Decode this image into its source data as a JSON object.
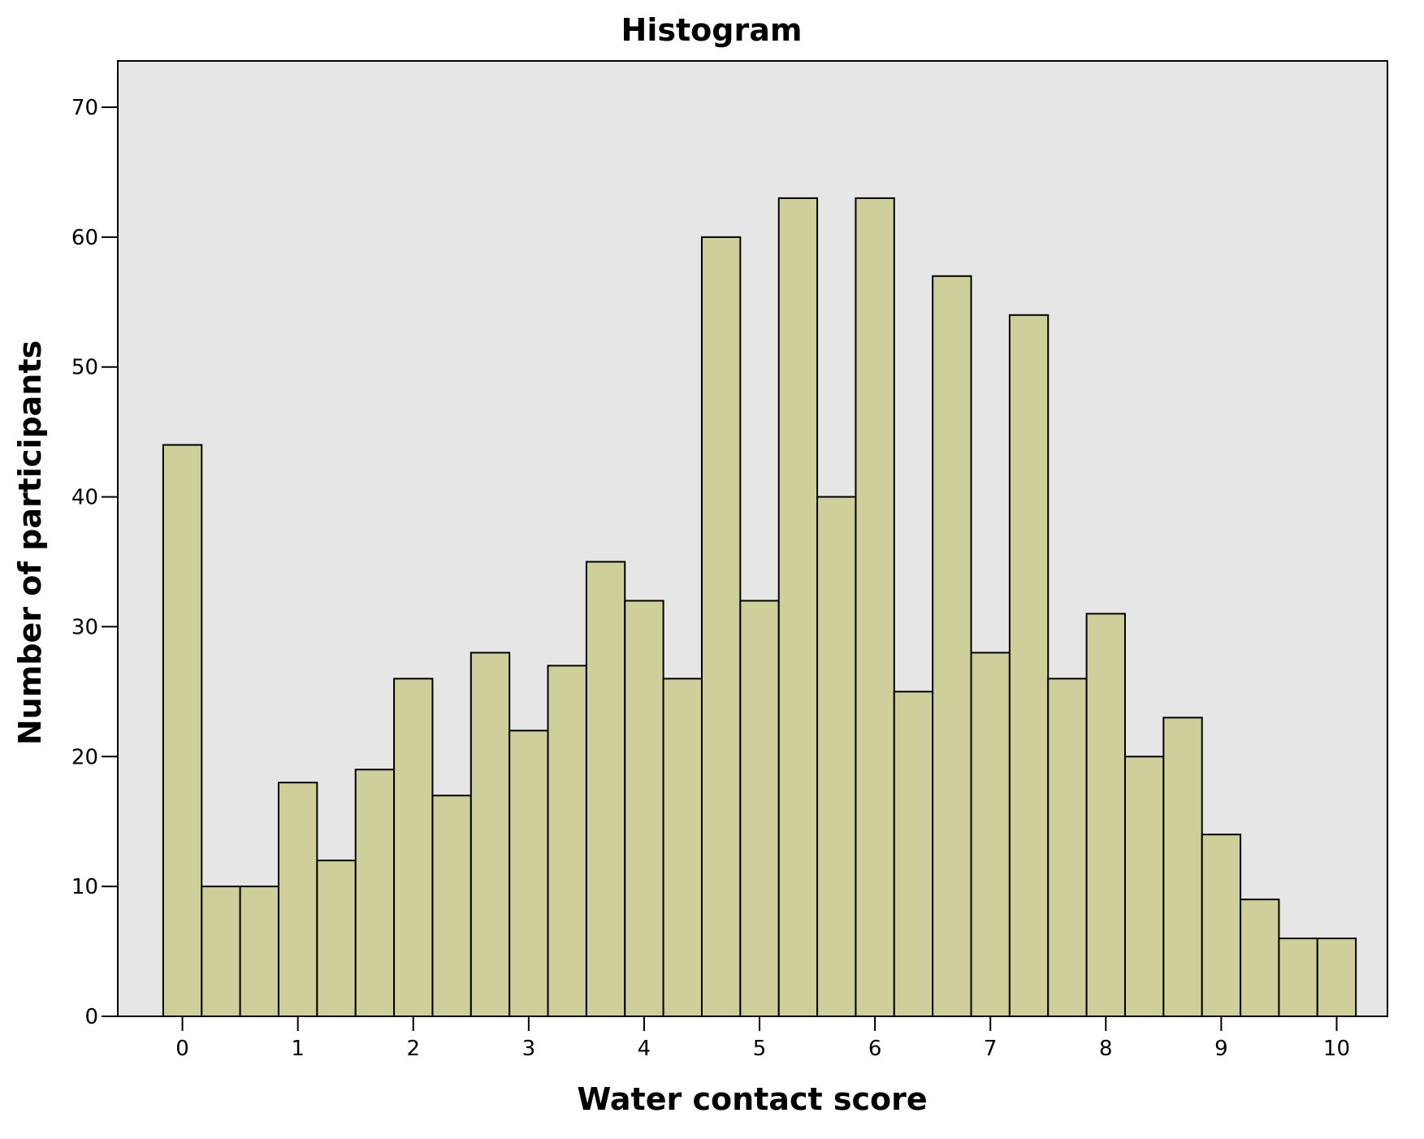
{
  "chart_data": {
    "type": "bar",
    "title": "Histogram",
    "xlabel": "Water contact score",
    "ylabel": "Number of participants",
    "xlim": [
      -0.56,
      10.44
    ],
    "ylim": [
      0,
      70
    ],
    "bin_width": 0.3333,
    "x_ticks": [
      0,
      1,
      2,
      3,
      4,
      5,
      6,
      7,
      8,
      9,
      10
    ],
    "y_ticks": [
      0,
      10,
      20,
      30,
      40,
      50,
      60,
      70
    ],
    "bins": [
      {
        "x0": -0.1667,
        "x1": 0.1667,
        "value": 44
      },
      {
        "x0": 0.1667,
        "x1": 0.5,
        "value": 10
      },
      {
        "x0": 0.5,
        "x1": 0.8333,
        "value": 10
      },
      {
        "x0": 0.8333,
        "x1": 1.1667,
        "value": 18
      },
      {
        "x0": 1.1667,
        "x1": 1.5,
        "value": 12
      },
      {
        "x0": 1.5,
        "x1": 1.8333,
        "value": 19
      },
      {
        "x0": 1.8333,
        "x1": 2.1667,
        "value": 26
      },
      {
        "x0": 2.1667,
        "x1": 2.5,
        "value": 17
      },
      {
        "x0": 2.5,
        "x1": 2.8333,
        "value": 28
      },
      {
        "x0": 2.8333,
        "x1": 3.1667,
        "value": 22
      },
      {
        "x0": 3.1667,
        "x1": 3.5,
        "value": 27
      },
      {
        "x0": 3.5,
        "x1": 3.8333,
        "value": 35
      },
      {
        "x0": 3.8333,
        "x1": 4.1667,
        "value": 32
      },
      {
        "x0": 4.1667,
        "x1": 4.5,
        "value": 26
      },
      {
        "x0": 4.5,
        "x1": 4.8333,
        "value": 60
      },
      {
        "x0": 4.8333,
        "x1": 5.1667,
        "value": 32
      },
      {
        "x0": 5.1667,
        "x1": 5.5,
        "value": 63
      },
      {
        "x0": 5.5,
        "x1": 5.8333,
        "value": 40
      },
      {
        "x0": 5.8333,
        "x1": 6.1667,
        "value": 63
      },
      {
        "x0": 6.1667,
        "x1": 6.5,
        "value": 25
      },
      {
        "x0": 6.5,
        "x1": 6.8333,
        "value": 57
      },
      {
        "x0": 6.8333,
        "x1": 7.1667,
        "value": 28
      },
      {
        "x0": 7.1667,
        "x1": 7.5,
        "value": 54
      },
      {
        "x0": 7.5,
        "x1": 7.8333,
        "value": 26
      },
      {
        "x0": 7.8333,
        "x1": 8.1667,
        "value": 31
      },
      {
        "x0": 8.1667,
        "x1": 8.5,
        "value": 20
      },
      {
        "x0": 8.5,
        "x1": 8.8333,
        "value": 23
      },
      {
        "x0": 8.8333,
        "x1": 9.1667,
        "value": 14
      },
      {
        "x0": 9.1667,
        "x1": 9.5,
        "value": 9
      },
      {
        "x0": 9.5,
        "x1": 9.8333,
        "value": 6
      },
      {
        "x0": 9.8333,
        "x1": 10.1667,
        "value": 6
      }
    ],
    "grid": false,
    "colors": {
      "bar_fill": "#cfcf9c",
      "bar_stroke": "#000000",
      "plot_background": "#e6e6e6"
    }
  }
}
